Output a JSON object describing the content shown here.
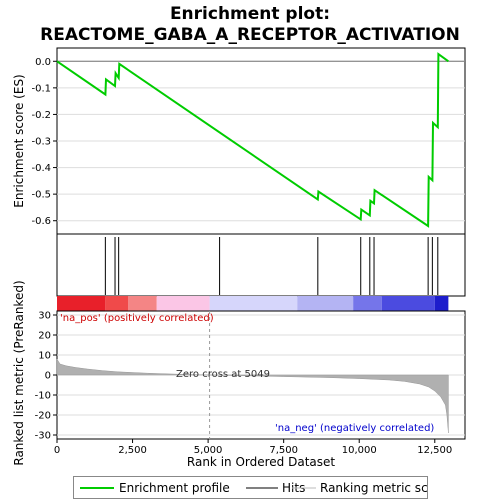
{
  "chart_data": {
    "type": "line",
    "title_line1": "Enrichment plot:",
    "title_line2": "REACTOME_GABA_A_RECEPTOR_ACTIVATION",
    "ylabel_top": "Enrichment score (ES)",
    "ylabel_bottom": "Ranked list metric (PreRanked)",
    "xlabel": "Rank in Ordered Dataset",
    "x_range": [
      0,
      13500
    ],
    "es_ylim": [
      -0.65,
      0.05
    ],
    "es_yticks": [
      "0.0",
      "-0.1",
      "-0.2",
      "-0.3",
      "-0.4",
      "-0.5",
      "-0.6"
    ],
    "es_ytick_values": [
      0.0,
      -0.1,
      -0.2,
      -0.3,
      -0.4,
      -0.5,
      -0.6
    ],
    "metric_ylim": [
      -32,
      32
    ],
    "metric_yticks": [
      "30",
      "20",
      "10",
      "0",
      "-10",
      "-20",
      "-30"
    ],
    "metric_ytick_values": [
      30,
      20,
      10,
      0,
      -10,
      -20,
      -30
    ],
    "xticks": [
      "0",
      "2,500",
      "5,000",
      "7,500",
      "10,000",
      "12,500"
    ],
    "xtick_values": [
      0,
      2500,
      5000,
      7500,
      10000,
      12500
    ],
    "enrichment_profile": {
      "x": [
        0,
        1600,
        1620,
        1920,
        1940,
        2040,
        2060,
        8630,
        8650,
        10050,
        10070,
        10350,
        10370,
        10490,
        10510,
        12280,
        12300,
        12420,
        12440,
        12600,
        12620,
        12950
      ],
      "y": [
        0.0,
        -0.125,
        -0.068,
        -0.093,
        -0.045,
        -0.063,
        -0.01,
        -0.52,
        -0.49,
        -0.595,
        -0.558,
        -0.58,
        -0.525,
        -0.535,
        -0.485,
        -0.62,
        -0.435,
        -0.448,
        -0.232,
        -0.248,
        0.027,
        0.0
      ]
    },
    "hits": [
      1600,
      1920,
      2040,
      5380,
      8630,
      10050,
      10350,
      10490,
      12280,
      12420,
      12600
    ],
    "metric": {
      "x": [
        0,
        100,
        300,
        600,
        1000,
        1500,
        2000,
        3000,
        4000,
        5049,
        6000,
        7500,
        9000,
        10000,
        11000,
        11500,
        12000,
        12300,
        12500,
        12700,
        12850,
        12900,
        12950
      ],
      "y": [
        8.0,
        5.5,
        4.6,
        3.8,
        3.0,
        2.2,
        1.6,
        0.9,
        0.4,
        0.0,
        -0.3,
        -0.8,
        -1.3,
        -1.8,
        -2.5,
        -3.2,
        -4.5,
        -6.0,
        -8.0,
        -11.0,
        -15.0,
        -20.0,
        -29.0
      ]
    },
    "zero_cross_x": 5049,
    "zero_cross_label": "Zero cross at 5049",
    "pos_label": "'na_pos' (positively correlated)",
    "neg_label": "'na_neg' (negatively correlated)",
    "colors": {
      "profile": "#00cc00",
      "pos_text": "#cc0000",
      "neg_text": "#0000cc",
      "metric_fill": "#b0b0b0",
      "grid": "#dddddd"
    },
    "legend": [
      "Enrichment profile",
      "Hits",
      "Ranking metric scores"
    ]
  }
}
